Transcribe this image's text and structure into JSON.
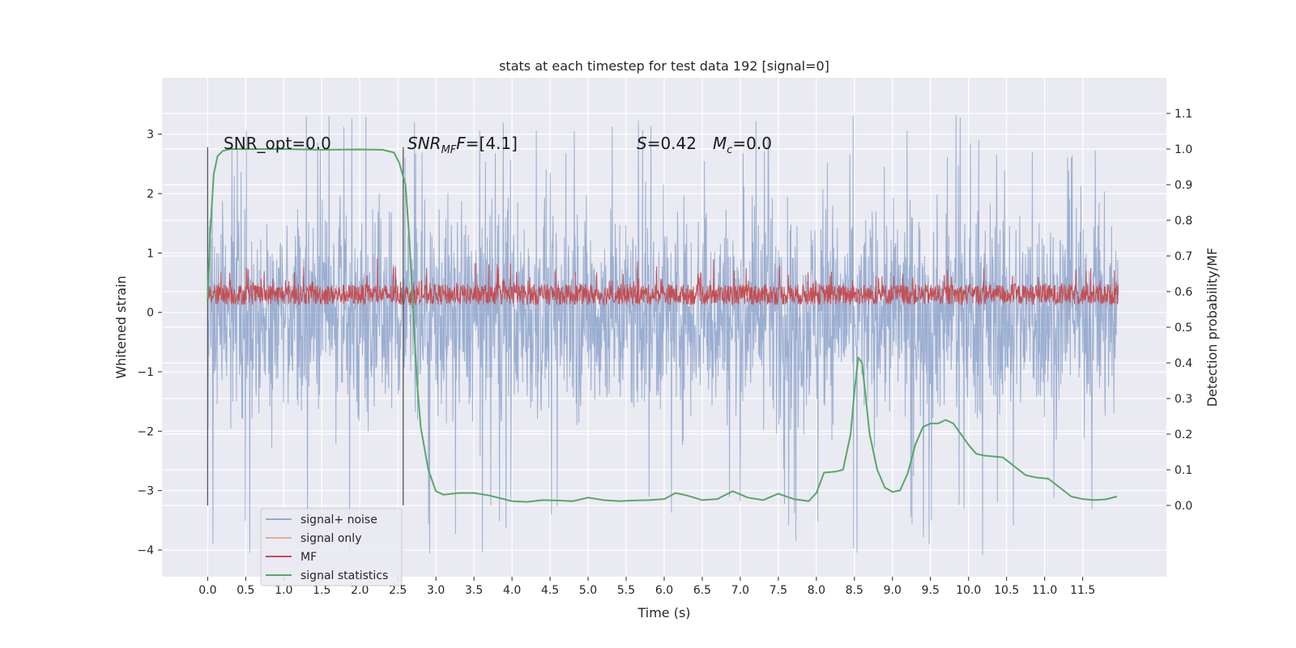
{
  "chart_data": {
    "type": "line",
    "title": "stats at each timestep for test data 192 [signal=0]",
    "xlabel": "Time (s)",
    "ylabel": "Whitened strain",
    "ylabel_right": "Detection probability/MF",
    "xlim": [
      -0.6,
      12.6
    ],
    "ylim": [
      -4.45,
      3.95
    ],
    "ylim_right": [
      -0.2,
      1.2
    ],
    "x_ticks": [
      "0.0",
      "0.5",
      "1.0",
      "1.5",
      "2.0",
      "2.5",
      "3.0",
      "3.5",
      "4.0",
      "4.5",
      "5.0",
      "5.5",
      "6.0",
      "6.5",
      "7.0",
      "7.5",
      "8.0",
      "8.5",
      "9.0",
      "9.5",
      "10.0",
      "10.5",
      "11.0",
      "11.5"
    ],
    "y_ticks": [
      "−4",
      "−3",
      "−2",
      "−1",
      "0",
      "1",
      "2",
      "3"
    ],
    "y_ticks_right": [
      "0.0",
      "0.1",
      "0.2",
      "0.3",
      "0.4",
      "0.5",
      "0.6",
      "0.7",
      "0.8",
      "0.9",
      "1.0",
      "1.1"
    ],
    "grid": true,
    "legend_position": "lower-left",
    "annotations": [
      {
        "text": "SNR_opt=0.0"
      },
      {
        "text": "SNR",
        "sub": "MF",
        "rest": "=[4.1]"
      },
      {
        "text": "S",
        "rest": "=0.42"
      },
      {
        "text": "M",
        "sub": "c",
        "rest": "=0.0"
      }
    ],
    "vlines_x": [
      0.0,
      2.57
    ],
    "series": [
      {
        "name": "signal+ noise",
        "color": "#4c72b0",
        "x_range": [
          0.0,
          11.97
        ],
        "approx_envelope": [
          -2.2,
          2.3
        ],
        "peak_range": [
          -4.1,
          3.35
        ]
      },
      {
        "name": "signal only",
        "color": "#dd8452",
        "values": []
      },
      {
        "name": "MF",
        "color": "#c44e52",
        "x_range": [
          0.0,
          11.97
        ],
        "baseline": 0.3,
        "approx_range": [
          0.0,
          1.0
        ]
      },
      {
        "name": "signal statistics",
        "color": "#55a868",
        "x": [
          0.0,
          0.03,
          0.08,
          0.13,
          0.2,
          0.3,
          0.5,
          1.0,
          1.5,
          2.0,
          2.3,
          2.45,
          2.52,
          2.6,
          2.65,
          2.7,
          2.75,
          2.8,
          2.9,
          3.0,
          3.1,
          3.3,
          3.5,
          3.7,
          4.0,
          4.2,
          4.4,
          4.6,
          4.8,
          5.0,
          5.2,
          5.4,
          5.6,
          5.8,
          6.0,
          6.15,
          6.3,
          6.5,
          6.7,
          6.9,
          7.1,
          7.3,
          7.5,
          7.7,
          7.9,
          8.0,
          8.1,
          8.25,
          8.35,
          8.45,
          8.5,
          8.55,
          8.6,
          8.65,
          8.7,
          8.8,
          8.9,
          9.0,
          9.1,
          9.2,
          9.3,
          9.4,
          9.5,
          9.6,
          9.7,
          9.8,
          9.9,
          10.0,
          10.1,
          10.2,
          10.3,
          10.45,
          10.6,
          10.75,
          10.9,
          11.05,
          11.2,
          11.35,
          11.5,
          11.65,
          11.8,
          11.95
        ],
        "values": [
          0.58,
          0.75,
          0.93,
          0.98,
          0.995,
          1.0,
          1.0,
          1.0,
          0.998,
          0.999,
          0.998,
          0.99,
          0.96,
          0.9,
          0.75,
          0.55,
          0.35,
          0.22,
          0.1,
          0.04,
          0.03,
          0.035,
          0.035,
          0.028,
          0.012,
          0.01,
          0.015,
          0.014,
          0.012,
          0.022,
          0.015,
          0.012,
          0.014,
          0.015,
          0.018,
          0.035,
          0.028,
          0.015,
          0.018,
          0.04,
          0.022,
          0.015,
          0.033,
          0.018,
          0.012,
          0.035,
          0.092,
          0.095,
          0.1,
          0.2,
          0.32,
          0.415,
          0.4,
          0.3,
          0.2,
          0.1,
          0.05,
          0.038,
          0.042,
          0.09,
          0.17,
          0.22,
          0.23,
          0.23,
          0.24,
          0.23,
          0.2,
          0.17,
          0.145,
          0.14,
          0.138,
          0.135,
          0.11,
          0.085,
          0.078,
          0.075,
          0.05,
          0.025,
          0.018,
          0.015,
          0.017,
          0.025
        ]
      }
    ]
  }
}
